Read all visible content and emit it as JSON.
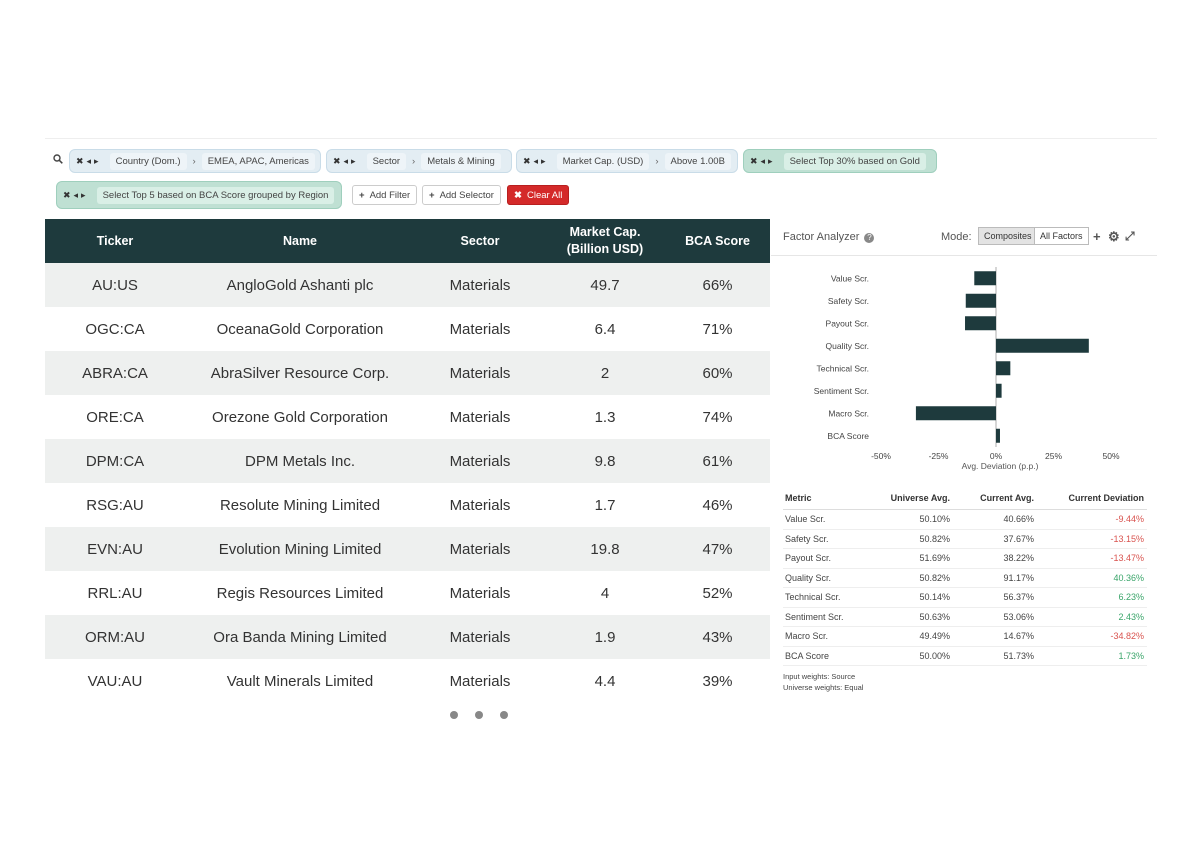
{
  "filters": {
    "chips": [
      {
        "label": "Country (Dom.)",
        "value": "EMEA, APAC, Americas"
      },
      {
        "label": "Sector",
        "value": "Metals & Mining"
      },
      {
        "label": "Market Cap. (USD)",
        "value": "Above 1.00B"
      }
    ],
    "green_chips": [
      "Select Top 30% based on Gold",
      "Select Top 5 based on BCA Score grouped by Region"
    ],
    "add_filter": "Add Filter",
    "add_selector": "Add Selector",
    "clear_all": "Clear All"
  },
  "table": {
    "headers": {
      "ticker": "Ticker",
      "name": "Name",
      "sector": "Sector",
      "mcap_line1": "Market Cap.",
      "mcap_line2": "(Billion USD)",
      "score": "BCA Score"
    },
    "rows": [
      {
        "ticker": "AU:US",
        "name": "AngloGold Ashanti plc",
        "sector": "Materials",
        "mcap": "49.7",
        "score": "66%"
      },
      {
        "ticker": "OGC:CA",
        "name": "OceanaGold Corporation",
        "sector": "Materials",
        "mcap": "6.4",
        "score": "71%"
      },
      {
        "ticker": "ABRA:CA",
        "name": "AbraSilver Resource Corp.",
        "sector": "Materials",
        "mcap": "2",
        "score": "60%"
      },
      {
        "ticker": "ORE:CA",
        "name": "Orezone Gold Corporation",
        "sector": "Materials",
        "mcap": "1.3",
        "score": "74%"
      },
      {
        "ticker": "DPM:CA",
        "name": "DPM Metals Inc.",
        "sector": "Materials",
        "mcap": "9.8",
        "score": "61%"
      },
      {
        "ticker": "RSG:AU",
        "name": "Resolute Mining Limited",
        "sector": "Materials",
        "mcap": "1.7",
        "score": "46%"
      },
      {
        "ticker": "EVN:AU",
        "name": "Evolution Mining Limited",
        "sector": "Materials",
        "mcap": "19.8",
        "score": "47%"
      },
      {
        "ticker": "RRL:AU",
        "name": "Regis Resources Limited",
        "sector": "Materials",
        "mcap": "4",
        "score": "52%"
      },
      {
        "ticker": "ORM:AU",
        "name": "Ora Banda Mining Limited",
        "sector": "Materials",
        "mcap": "1.9",
        "score": "43%"
      },
      {
        "ticker": "VAU:AU",
        "name": "Vault Minerals Limited",
        "sector": "Materials",
        "mcap": "4.4",
        "score": "39%"
      }
    ]
  },
  "panel": {
    "title": "Factor Analyzer",
    "mode_label": "Mode:",
    "mode_options": [
      "Composites",
      "All Factors"
    ],
    "active_mode": "Composites"
  },
  "chart_data": {
    "type": "bar",
    "orientation": "horizontal",
    "categories": [
      "Value Scr.",
      "Safety Scr.",
      "Payout Scr.",
      "Quality Scr.",
      "Technical Scr.",
      "Sentiment Scr.",
      "Macro Scr.",
      "BCA Score"
    ],
    "values": [
      -9.44,
      -13.15,
      -13.47,
      40.36,
      6.23,
      2.43,
      -34.82,
      1.73
    ],
    "xlabel": "Avg. Deviation (p.p.)",
    "xticks": [
      "-50%",
      "-25%",
      "0%",
      "25%",
      "50%"
    ],
    "xlim": [
      -50,
      50
    ],
    "bar_color": "#1e3a3d"
  },
  "factor_table": {
    "headers": [
      "Metric",
      "Universe Avg.",
      "Current Avg.",
      "Current Deviation"
    ],
    "rows": [
      {
        "metric": "Value Scr.",
        "universe": "50.10%",
        "current": "40.66%",
        "deviation": "-9.44%",
        "sign": "neg"
      },
      {
        "metric": "Safety Scr.",
        "universe": "50.82%",
        "current": "37.67%",
        "deviation": "-13.15%",
        "sign": "neg"
      },
      {
        "metric": "Payout Scr.",
        "universe": "51.69%",
        "current": "38.22%",
        "deviation": "-13.47%",
        "sign": "neg"
      },
      {
        "metric": "Quality Scr.",
        "universe": "50.82%",
        "current": "91.17%",
        "deviation": "40.36%",
        "sign": "pos"
      },
      {
        "metric": "Technical Scr.",
        "universe": "50.14%",
        "current": "56.37%",
        "deviation": "6.23%",
        "sign": "pos"
      },
      {
        "metric": "Sentiment Scr.",
        "universe": "50.63%",
        "current": "53.06%",
        "deviation": "2.43%",
        "sign": "pos"
      },
      {
        "metric": "Macro Scr.",
        "universe": "49.49%",
        "current": "14.67%",
        "deviation": "-34.82%",
        "sign": "neg"
      },
      {
        "metric": "BCA Score",
        "universe": "50.00%",
        "current": "51.73%",
        "deviation": "1.73%",
        "sign": "pos"
      }
    ],
    "weights_line1": "Input weights: Source",
    "weights_line2": "Universe weights: Equal"
  }
}
